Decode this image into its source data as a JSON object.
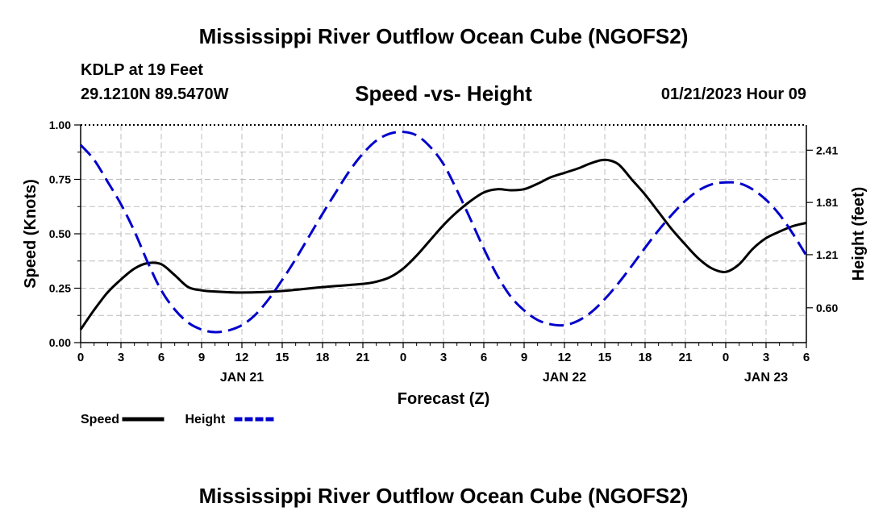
{
  "page": {
    "title_top": "Mississippi River Outflow Ocean Cube (NGOFS2)",
    "title_bottom": "Mississippi River Outflow Ocean Cube (NGOFS2)",
    "station": "KDLP at 19 Feet",
    "coords": "29.1210N  89.5470W",
    "subtitle": "Speed -vs- Height",
    "datetime": "01/21/2023 Hour 09"
  },
  "chart_data": {
    "type": "line",
    "xlabel": "Forecast (Z)",
    "ylabel": "Speed (Knots)",
    "y2label": "Height (feet)",
    "x_range_hours": [
      0,
      54
    ],
    "ylim": [
      0,
      1.0
    ],
    "y2lim": [
      0.2,
      2.7
    ],
    "grid": true,
    "x_ticks": [
      {
        "h": 0,
        "label": "0"
      },
      {
        "h": 3,
        "label": "3"
      },
      {
        "h": 6,
        "label": "6"
      },
      {
        "h": 9,
        "label": "9"
      },
      {
        "h": 12,
        "label": "12"
      },
      {
        "h": 15,
        "label": "15"
      },
      {
        "h": 18,
        "label": "18"
      },
      {
        "h": 21,
        "label": "21"
      },
      {
        "h": 24,
        "label": "0"
      },
      {
        "h": 27,
        "label": "3"
      },
      {
        "h": 30,
        "label": "6"
      },
      {
        "h": 33,
        "label": "9"
      },
      {
        "h": 36,
        "label": "12"
      },
      {
        "h": 39,
        "label": "15"
      },
      {
        "h": 42,
        "label": "18"
      },
      {
        "h": 45,
        "label": "21"
      },
      {
        "h": 48,
        "label": "0"
      },
      {
        "h": 51,
        "label": "3"
      },
      {
        "h": 54,
        "label": "6"
      }
    ],
    "date_labels": [
      {
        "h": 12,
        "label": "JAN 21"
      },
      {
        "h": 36,
        "label": "JAN 22"
      },
      {
        "h": 51,
        "label": "JAN 23"
      }
    ],
    "y_ticks": [
      {
        "v": 0.0,
        "label": "0.00"
      },
      {
        "v": 0.25,
        "label": "0.25"
      },
      {
        "v": 0.5,
        "label": "0.50"
      },
      {
        "v": 0.75,
        "label": "0.75"
      },
      {
        "v": 1.0,
        "label": "1.00"
      }
    ],
    "y2_ticks": [
      {
        "v": 0.6,
        "label": "0.60"
      },
      {
        "v": 1.21,
        "label": "1.21"
      },
      {
        "v": 1.81,
        "label": "1.81"
      },
      {
        "v": 2.41,
        "label": "2.41"
      }
    ],
    "series": [
      {
        "name": "Speed",
        "axis": "left",
        "color": "#000000",
        "dash": false,
        "points": [
          [
            0,
            0.06
          ],
          [
            1,
            0.15
          ],
          [
            2,
            0.23
          ],
          [
            3,
            0.29
          ],
          [
            4,
            0.34
          ],
          [
            5,
            0.365
          ],
          [
            6,
            0.36
          ],
          [
            7,
            0.31
          ],
          [
            8,
            0.255
          ],
          [
            9,
            0.24
          ],
          [
            10,
            0.235
          ],
          [
            12,
            0.23
          ],
          [
            15,
            0.237
          ],
          [
            18,
            0.255
          ],
          [
            21,
            0.27
          ],
          [
            22,
            0.28
          ],
          [
            23,
            0.3
          ],
          [
            24,
            0.34
          ],
          [
            25,
            0.4
          ],
          [
            26,
            0.47
          ],
          [
            27,
            0.54
          ],
          [
            28,
            0.6
          ],
          [
            29,
            0.65
          ],
          [
            30,
            0.69
          ],
          [
            31,
            0.705
          ],
          [
            32,
            0.7
          ],
          [
            33,
            0.705
          ],
          [
            34,
            0.73
          ],
          [
            35,
            0.76
          ],
          [
            36,
            0.78
          ],
          [
            37,
            0.8
          ],
          [
            38,
            0.825
          ],
          [
            39,
            0.84
          ],
          [
            40,
            0.82
          ],
          [
            41,
            0.75
          ],
          [
            42,
            0.68
          ],
          [
            43,
            0.6
          ],
          [
            44,
            0.52
          ],
          [
            45,
            0.45
          ],
          [
            46,
            0.385
          ],
          [
            47,
            0.34
          ],
          [
            48,
            0.325
          ],
          [
            49,
            0.36
          ],
          [
            50,
            0.43
          ],
          [
            51,
            0.48
          ],
          [
            52,
            0.51
          ],
          [
            53,
            0.535
          ],
          [
            54,
            0.55
          ]
        ]
      },
      {
        "name": "Height",
        "axis": "right",
        "color": "#0000cc",
        "dash": true,
        "points": [
          [
            0,
            2.47
          ],
          [
            1,
            2.3
          ],
          [
            2,
            2.05
          ],
          [
            3,
            1.79
          ],
          [
            4,
            1.48
          ],
          [
            5,
            1.12
          ],
          [
            6,
            0.8
          ],
          [
            7,
            0.58
          ],
          [
            8,
            0.43
          ],
          [
            9,
            0.35
          ],
          [
            10,
            0.32
          ],
          [
            11,
            0.34
          ],
          [
            12,
            0.4
          ],
          [
            13,
            0.52
          ],
          [
            14,
            0.7
          ],
          [
            15,
            0.92
          ],
          [
            16,
            1.16
          ],
          [
            17,
            1.42
          ],
          [
            18,
            1.68
          ],
          [
            19,
            1.93
          ],
          [
            20,
            2.17
          ],
          [
            21,
            2.37
          ],
          [
            22,
            2.52
          ],
          [
            23,
            2.6
          ],
          [
            24,
            2.62
          ],
          [
            25,
            2.58
          ],
          [
            26,
            2.45
          ],
          [
            27,
            2.25
          ],
          [
            28,
            1.95
          ],
          [
            29,
            1.62
          ],
          [
            30,
            1.28
          ],
          [
            31,
            0.97
          ],
          [
            32,
            0.73
          ],
          [
            33,
            0.57
          ],
          [
            34,
            0.46
          ],
          [
            35,
            0.41
          ],
          [
            36,
            0.4
          ],
          [
            37,
            0.45
          ],
          [
            38,
            0.55
          ],
          [
            39,
            0.7
          ],
          [
            40,
            0.88
          ],
          [
            41,
            1.08
          ],
          [
            42,
            1.29
          ],
          [
            43,
            1.49
          ],
          [
            44,
            1.67
          ],
          [
            45,
            1.83
          ],
          [
            46,
            1.95
          ],
          [
            47,
            2.02
          ],
          [
            48,
            2.04
          ],
          [
            49,
            2.03
          ],
          [
            50,
            1.96
          ],
          [
            51,
            1.84
          ],
          [
            52,
            1.67
          ],
          [
            53,
            1.45
          ],
          [
            54,
            1.2
          ]
        ]
      }
    ],
    "legend": [
      {
        "label": "Speed",
        "color": "#000000",
        "dash": false
      },
      {
        "label": "Height",
        "color": "#0000cc",
        "dash": true
      }
    ]
  }
}
